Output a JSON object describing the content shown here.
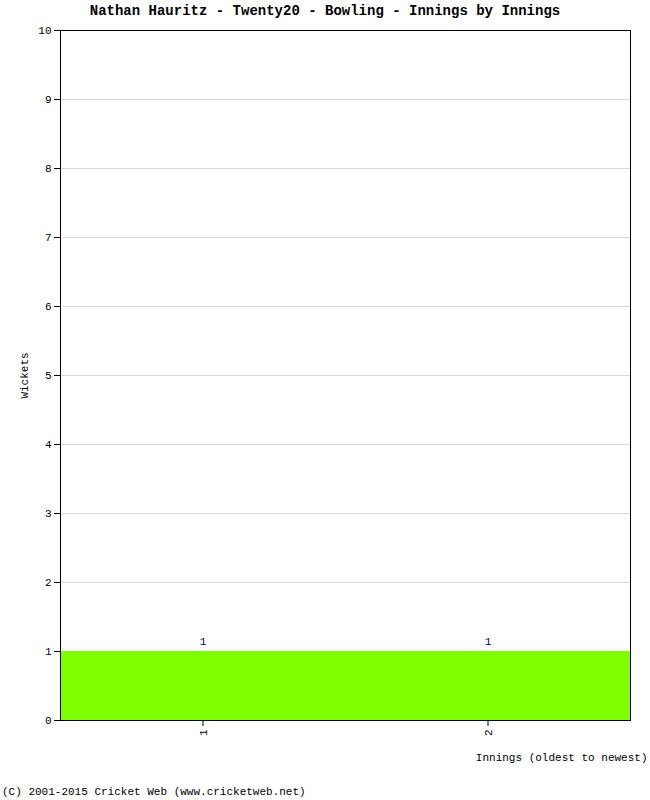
{
  "chart_data": {
    "type": "bar",
    "title": "Nathan Hauritz - Twenty20 - Bowling - Innings by Innings",
    "caption": "(C) 2001-2015 Cricket Web (www.cricketweb.net)",
    "xlabel": "Innings (oldest to newest)",
    "ylabel": "Wickets",
    "categories": [
      "1",
      "2"
    ],
    "values": [
      1,
      1
    ],
    "color": "#80ff00",
    "ylim": [
      0,
      10
    ],
    "yticks": [
      0,
      1,
      2,
      3,
      4,
      5,
      6,
      7,
      8,
      9,
      10
    ],
    "grid": true,
    "data_labels": true
  }
}
